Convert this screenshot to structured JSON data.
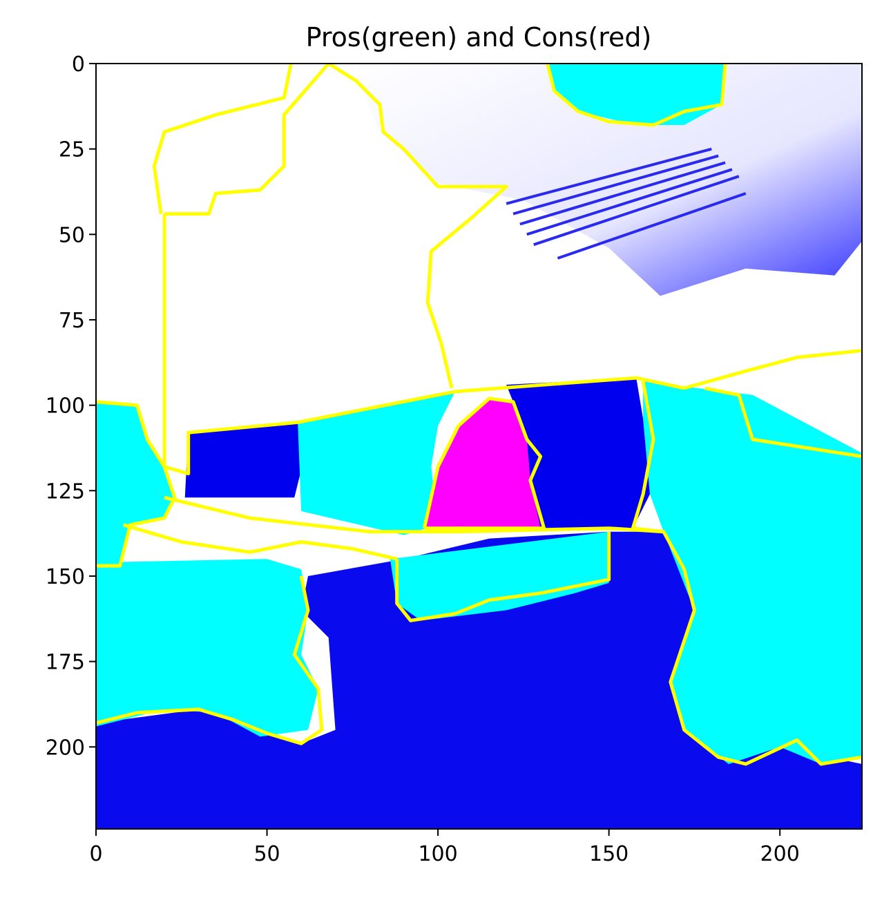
{
  "chart_data": {
    "type": "heatmap",
    "title": "Pros(green) and Cons(red)",
    "xlabel": "",
    "ylabel": "",
    "image_size": [
      224,
      224
    ],
    "xlim": [
      0,
      224
    ],
    "ylim": [
      224,
      0
    ],
    "x_ticks": [
      0,
      50,
      100,
      150,
      200
    ],
    "y_ticks": [
      0,
      25,
      50,
      75,
      100,
      125,
      150,
      175,
      200
    ],
    "grid": false,
    "legend": "none",
    "colors": {
      "background_sky": "#ffffff",
      "cons_blue": "#0000ee",
      "pros_cyan": "#00ffff",
      "overlap_magenta": "#ff00ff",
      "boundary_yellow": "#ffff00"
    },
    "regions": [
      {
        "label": "sky",
        "color": "#ffffff",
        "points": [
          [
            0,
            0
          ],
          [
            224,
            0
          ],
          [
            224,
            224
          ],
          [
            0,
            224
          ]
        ]
      },
      {
        "label": "sea-lower",
        "color": "#0a0aee",
        "points": [
          [
            0,
            193
          ],
          [
            30,
            189
          ],
          [
            60,
            199
          ],
          [
            70,
            195
          ],
          [
            68,
            168
          ],
          [
            60,
            160
          ],
          [
            62,
            150
          ],
          [
            90,
            145
          ],
          [
            115,
            139
          ],
          [
            150,
            137
          ],
          [
            168,
            137
          ],
          [
            175,
            160
          ],
          [
            168,
            181
          ],
          [
            185,
            205
          ],
          [
            200,
            200
          ],
          [
            224,
            205
          ],
          [
            224,
            224
          ],
          [
            0,
            224
          ]
        ]
      },
      {
        "label": "upper-right-blue",
        "color": "#0000ee",
        "points": [
          [
            75,
            0
          ],
          [
            224,
            0
          ],
          [
            224,
            52
          ],
          [
            216,
            62
          ],
          [
            190,
            60
          ],
          [
            165,
            68
          ],
          [
            150,
            54
          ],
          [
            125,
            40
          ],
          [
            100,
            35
          ],
          [
            83,
            20
          ]
        ]
      },
      {
        "label": "upper-cyan",
        "color": "#00ffff",
        "points": [
          [
            132,
            0
          ],
          [
            184,
            0
          ],
          [
            183,
            12
          ],
          [
            172,
            18
          ],
          [
            158,
            18
          ],
          [
            141,
            14
          ],
          [
            134,
            8
          ]
        ]
      },
      {
        "label": "left-cyan",
        "color": "#00ffff",
        "points": [
          [
            0,
            99
          ],
          [
            12,
            100
          ],
          [
            15,
            110
          ],
          [
            20,
            118
          ],
          [
            23,
            127
          ],
          [
            20,
            133
          ],
          [
            10,
            135
          ],
          [
            7,
            147
          ],
          [
            0,
            147
          ]
        ]
      },
      {
        "label": "left-bottom-cyan",
        "color": "#00ffff",
        "points": [
          [
            0,
            146
          ],
          [
            50,
            145
          ],
          [
            60,
            148
          ],
          [
            62,
            160
          ],
          [
            60,
            173
          ],
          [
            65,
            183
          ],
          [
            62,
            195
          ],
          [
            48,
            197
          ],
          [
            35,
            190
          ],
          [
            20,
            189
          ],
          [
            0,
            194
          ]
        ]
      },
      {
        "label": "center-left-blue",
        "color": "#0000ee",
        "points": [
          [
            27,
            108
          ],
          [
            59,
            105
          ],
          [
            61,
            115
          ],
          [
            58,
            127
          ],
          [
            26,
            127
          ]
        ]
      },
      {
        "label": "center-cyan",
        "color": "#00ffff",
        "points": [
          [
            59,
            105
          ],
          [
            105,
            96
          ],
          [
            100,
            106
          ],
          [
            98,
            118
          ],
          [
            100,
            135
          ],
          [
            90,
            138
          ],
          [
            60,
            131
          ]
        ]
      },
      {
        "label": "magenta-cons",
        "color": "#ff00ff",
        "points": [
          [
            115,
            98
          ],
          [
            122,
            99
          ],
          [
            126,
            110
          ],
          [
            127,
            122
          ],
          [
            131,
            136
          ],
          [
            96,
            136
          ],
          [
            100,
            118
          ],
          [
            106,
            106
          ]
        ]
      },
      {
        "label": "center-right-blue",
        "color": "#0000ee",
        "points": [
          [
            120,
            94
          ],
          [
            158,
            92
          ],
          [
            160,
            104
          ],
          [
            162,
            126
          ],
          [
            157,
            136
          ],
          [
            130,
            136
          ],
          [
            127,
            122
          ],
          [
            126,
            110
          ],
          [
            122,
            99
          ]
        ]
      },
      {
        "label": "right-cyan",
        "color": "#00ffff",
        "points": [
          [
            160,
            93
          ],
          [
            192,
            97
          ],
          [
            224,
            114
          ],
          [
            224,
            203
          ],
          [
            212,
            205
          ],
          [
            200,
            200
          ],
          [
            185,
            205
          ],
          [
            172,
            195
          ],
          [
            168,
            181
          ],
          [
            175,
            160
          ],
          [
            166,
            137
          ],
          [
            162,
            126
          ],
          [
            160,
            104
          ]
        ]
      },
      {
        "label": "bottom-center-cyan",
        "color": "#00ffff",
        "points": [
          [
            86,
            145
          ],
          [
            150,
            137
          ],
          [
            150,
            152
          ],
          [
            140,
            155
          ],
          [
            120,
            160
          ],
          [
            95,
            163
          ],
          [
            88,
            158
          ]
        ]
      }
    ],
    "boundaries": [
      [
        [
          20,
          44
        ],
        [
          20,
          118
        ],
        [
          27,
          120
        ],
        [
          27,
          108
        ],
        [
          59,
          105
        ],
        [
          105,
          96
        ],
        [
          131,
          94
        ],
        [
          158,
          92
        ],
        [
          172,
          95
        ]
      ],
      [
        [
          20,
          44
        ],
        [
          33,
          44
        ],
        [
          35,
          38
        ],
        [
          48,
          37
        ],
        [
          55,
          30
        ],
        [
          55,
          15
        ],
        [
          68,
          0
        ]
      ],
      [
        [
          19,
          44
        ],
        [
          17,
          30
        ],
        [
          20,
          20
        ],
        [
          35,
          15
        ],
        [
          55,
          10
        ],
        [
          57,
          0
        ]
      ],
      [
        [
          68,
          0
        ],
        [
          76,
          5
        ],
        [
          83,
          12
        ],
        [
          84,
          20
        ],
        [
          90,
          25
        ],
        [
          100,
          36
        ],
        [
          120,
          36
        ],
        [
          110,
          45
        ],
        [
          98,
          55
        ],
        [
          97,
          70
        ],
        [
          101,
          82
        ],
        [
          104,
          95
        ]
      ],
      [
        [
          132,
          0
        ],
        [
          134,
          8
        ],
        [
          141,
          14
        ],
        [
          150,
          17
        ],
        [
          163,
          18
        ],
        [
          172,
          14
        ],
        [
          183,
          12
        ],
        [
          184,
          0
        ]
      ],
      [
        [
          0,
          99
        ],
        [
          12,
          100
        ],
        [
          15,
          110
        ],
        [
          20,
          118
        ],
        [
          23,
          127
        ],
        [
          20,
          133
        ],
        [
          10,
          135
        ],
        [
          7,
          147
        ],
        [
          0,
          147
        ]
      ],
      [
        [
          0,
          193
        ],
        [
          12,
          190
        ],
        [
          30,
          189
        ],
        [
          40,
          192
        ],
        [
          50,
          196
        ],
        [
          60,
          199
        ],
        [
          66,
          195
        ],
        [
          65,
          183
        ],
        [
          58,
          173
        ],
        [
          62,
          160
        ],
        [
          60,
          150
        ]
      ],
      [
        [
          96,
          136
        ],
        [
          100,
          118
        ],
        [
          106,
          106
        ],
        [
          115,
          98
        ],
        [
          122,
          99
        ],
        [
          126,
          110
        ],
        [
          130,
          115
        ],
        [
          127,
          122
        ],
        [
          131,
          136
        ],
        [
          96,
          136
        ]
      ],
      [
        [
          88,
          145
        ],
        [
          88,
          158
        ],
        [
          92,
          163
        ],
        [
          105,
          161
        ],
        [
          115,
          157
        ],
        [
          130,
          155
        ],
        [
          150,
          151
        ],
        [
          150,
          137
        ]
      ],
      [
        [
          160,
          93
        ],
        [
          163,
          110
        ],
        [
          160,
          126
        ],
        [
          157,
          136
        ],
        [
          166,
          137
        ],
        [
          172,
          148
        ],
        [
          175,
          160
        ],
        [
          168,
          181
        ],
        [
          172,
          195
        ],
        [
          182,
          203
        ],
        [
          190,
          205
        ],
        [
          205,
          198
        ],
        [
          212,
          205
        ],
        [
          224,
          203
        ]
      ],
      [
        [
          172,
          95
        ],
        [
          190,
          90
        ],
        [
          205,
          86
        ],
        [
          224,
          84
        ]
      ],
      [
        [
          178,
          95
        ],
        [
          188,
          97
        ],
        [
          192,
          110
        ],
        [
          224,
          115
        ]
      ],
      [
        [
          20,
          127
        ],
        [
          45,
          133
        ],
        [
          80,
          137
        ],
        [
          105,
          137
        ],
        [
          150,
          136
        ],
        [
          166,
          137
        ]
      ],
      [
        [
          8,
          135
        ],
        [
          25,
          140
        ],
        [
          45,
          143
        ],
        [
          60,
          140
        ],
        [
          75,
          142
        ],
        [
          88,
          145
        ]
      ]
    ],
    "streaks": [
      [
        [
          120,
          41
        ],
        [
          180,
          25
        ]
      ],
      [
        [
          122,
          44
        ],
        [
          182,
          27
        ]
      ],
      [
        [
          124,
          47
        ],
        [
          184,
          29
        ]
      ],
      [
        [
          126,
          50
        ],
        [
          186,
          31
        ]
      ],
      [
        [
          128,
          53
        ],
        [
          188,
          33
        ]
      ],
      [
        [
          135,
          57
        ],
        [
          190,
          38
        ]
      ]
    ]
  }
}
